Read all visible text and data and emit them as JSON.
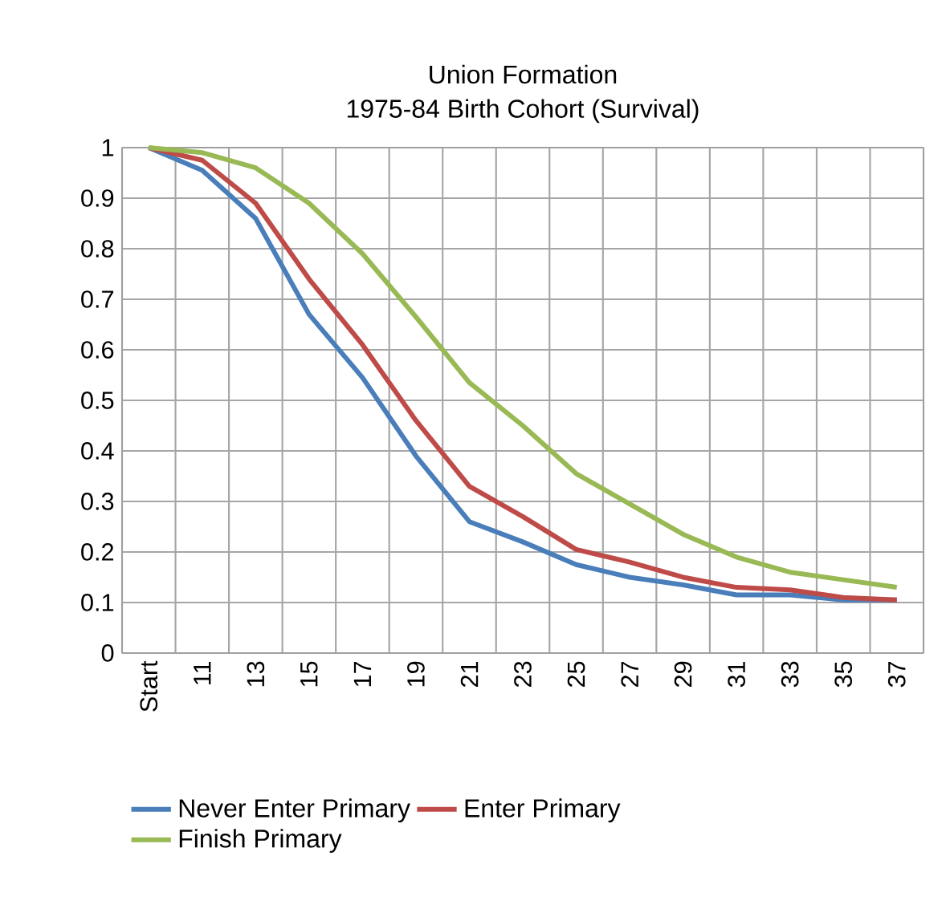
{
  "chart_data": {
    "type": "line",
    "title": "Union Formation",
    "subtitle": "1975-84 Birth Cohort (Survival)",
    "categories": [
      "Start",
      "11",
      "13",
      "15",
      "17",
      "19",
      "21",
      "23",
      "25",
      "27",
      "29",
      "31",
      "33",
      "35",
      "37"
    ],
    "series": [
      {
        "name": "Never Enter Primary",
        "color": "#4a7ebb",
        "values": [
          1.0,
          0.955,
          0.86,
          0.67,
          0.545,
          0.39,
          0.26,
          0.22,
          0.175,
          0.15,
          0.135,
          0.115,
          0.115,
          0.105,
          0.105
        ]
      },
      {
        "name": "Enter Primary",
        "color": "#be4b48",
        "values": [
          1.0,
          0.975,
          0.89,
          0.74,
          0.61,
          0.46,
          0.33,
          0.27,
          0.205,
          0.18,
          0.15,
          0.13,
          0.125,
          0.11,
          0.105
        ]
      },
      {
        "name": "Finish Primary",
        "color": "#98b954",
        "values": [
          1.0,
          0.99,
          0.96,
          0.89,
          0.79,
          0.665,
          0.535,
          0.45,
          0.355,
          0.295,
          0.235,
          0.19,
          0.16,
          0.145,
          0.13
        ]
      }
    ],
    "ylim": [
      0,
      1
    ],
    "yticks": [
      0,
      0.1,
      0.2,
      0.3,
      0.4,
      0.5,
      0.6,
      0.7,
      0.8,
      0.9,
      1
    ],
    "grid": true,
    "legend": "bottom",
    "marker": "none",
    "line_style": "solid"
  }
}
